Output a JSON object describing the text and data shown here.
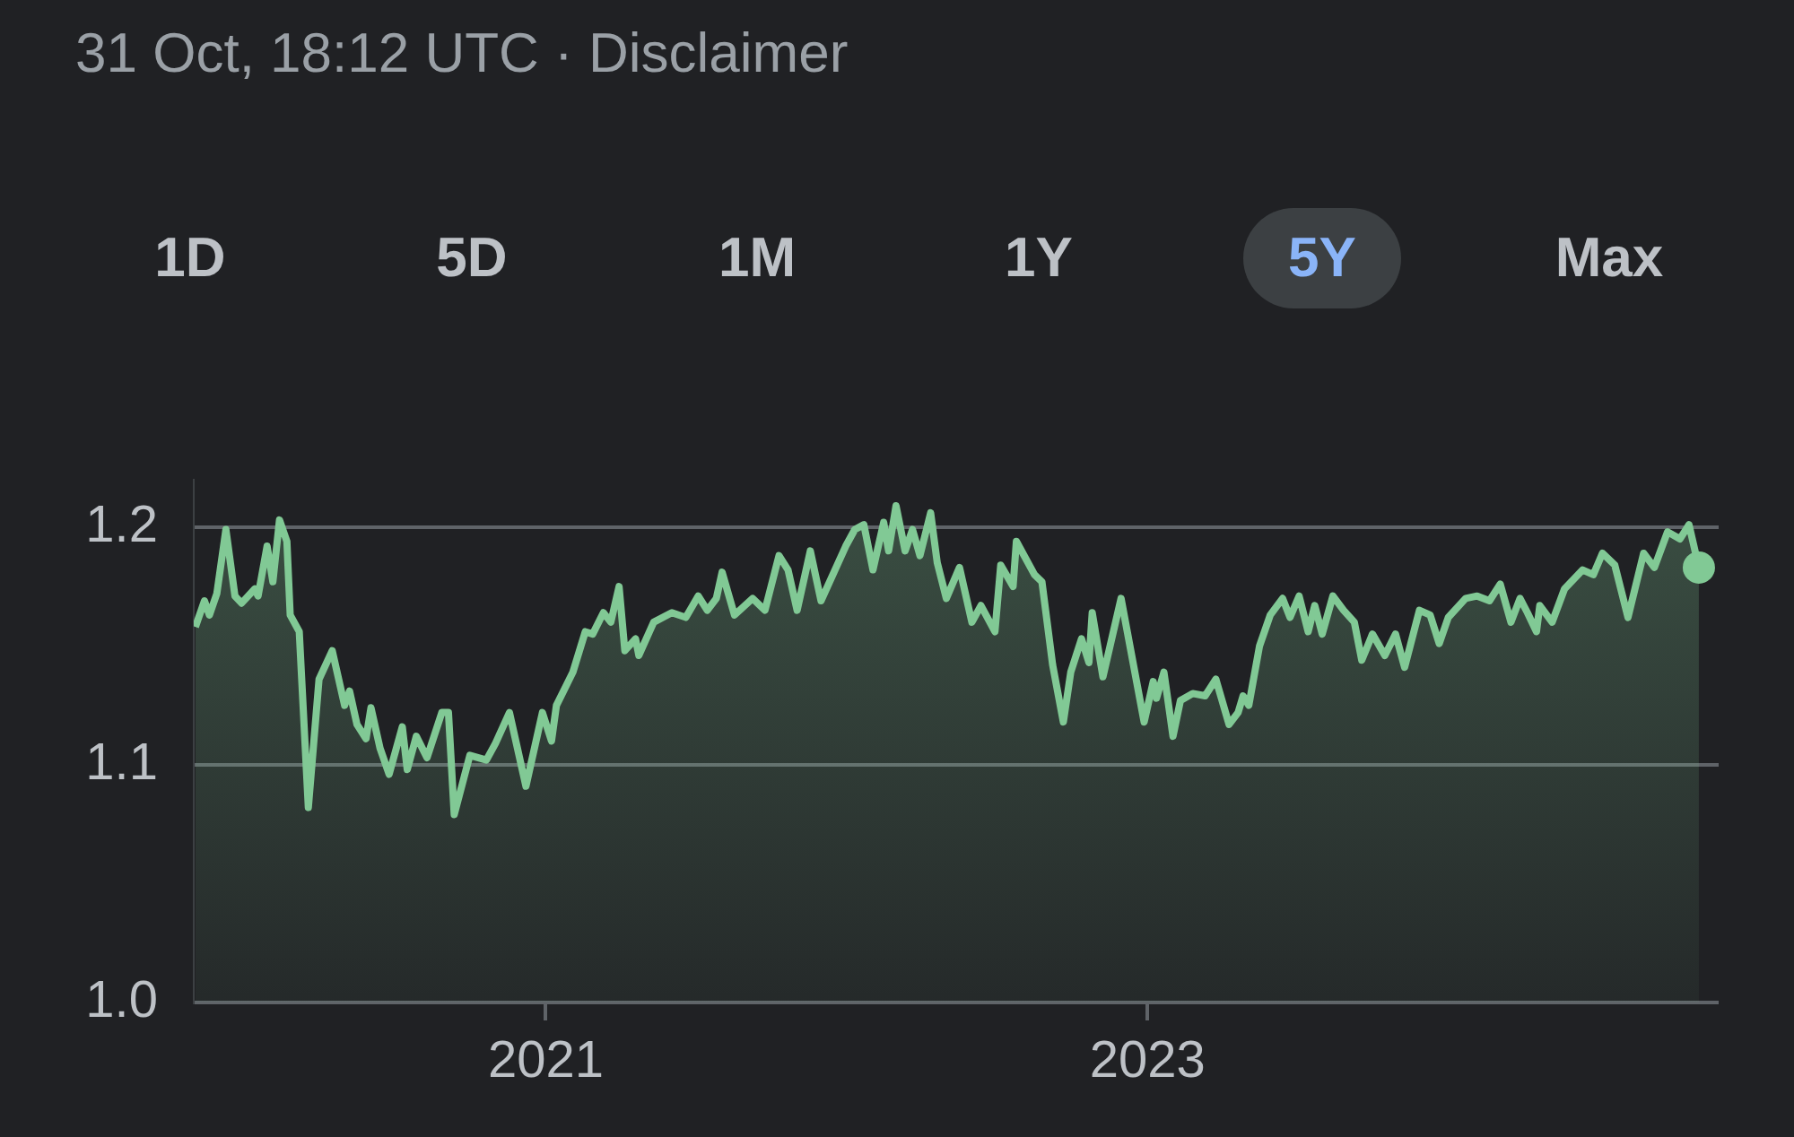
{
  "chart_data": {
    "type": "area",
    "subtitle": "31 Oct, 18:12 UTC · Disclaimer",
    "annotations": [
      "1D",
      "5D",
      "1M",
      "1Y",
      "5Y",
      "Max"
    ],
    "xlim": [
      "2019-11-01",
      "2024-11-24"
    ],
    "xticks": [
      "2021",
      "2023"
    ],
    "ylim": [
      1.0,
      1.22
    ],
    "yticks": [
      {
        "value": 1.0,
        "label": "1.0"
      },
      1.1,
      1.2
    ],
    "grid": "y",
    "series": [
      {
        "color": "#81c995",
        "x": [
          "2019-11-03",
          "2019-11-14",
          "2019-11-20",
          "2019-11-29",
          "2019-12-10",
          "2019-12-21",
          "2019-12-29",
          "2020-01-14",
          "2020-01-18",
          "2020-01-29",
          "2020-02-05",
          "2020-02-13",
          "2020-02-22",
          "2020-02-26",
          "2020-03-08",
          "2020-03-19",
          "2020-04-01",
          "2020-04-17",
          "2020-05-02",
          "2020-05-08",
          "2020-05-17",
          "2020-05-28",
          "2020-06-03",
          "2020-06-14",
          "2020-06-25",
          "2020-07-11",
          "2020-07-17",
          "2020-07-28",
          "2020-08-10",
          "2020-08-28",
          "2020-09-05",
          "2020-09-12",
          "2020-10-01",
          "2020-10-21",
          "2020-11-01",
          "2020-11-18",
          "2020-12-08",
          "2020-12-28",
          "2021-01-08",
          "2021-01-14",
          "2021-02-03",
          "2021-02-18",
          "2021-02-27",
          "2021-03-12",
          "2021-03-21",
          "2021-03-31",
          "2021-04-07",
          "2021-04-20",
          "2021-04-24",
          "2021-05-12",
          "2021-06-03",
          "2021-06-20",
          "2021-07-05",
          "2021-07-16",
          "2021-07-27",
          "2021-08-03",
          "2021-08-18",
          "2021-09-09",
          "2021-09-24",
          "2021-10-11",
          "2021-10-22",
          "2021-11-02",
          "2021-11-18",
          "2021-12-01",
          "2021-12-31",
          "2022-01-11",
          "2022-01-22",
          "2022-02-02",
          "2022-02-15",
          "2022-02-21",
          "2022-03-02",
          "2022-03-13",
          "2022-03-22",
          "2022-03-31",
          "2022-04-13",
          "2022-04-21",
          "2022-05-02",
          "2022-05-18",
          "2022-06-02",
          "2022-06-13",
          "2022-06-30",
          "2022-07-07",
          "2022-07-22",
          "2022-07-26",
          "2022-08-17",
          "2022-08-26",
          "2022-09-08",
          "2022-09-21",
          "2022-09-30",
          "2022-10-13",
          "2022-10-22",
          "2022-10-26",
          "2022-11-08",
          "2022-11-30",
          "2022-12-28",
          "2023-01-08",
          "2023-01-12",
          "2023-01-21",
          "2023-02-01",
          "2023-02-10",
          "2023-02-25",
          "2023-03-12",
          "2023-03-25",
          "2023-04-10",
          "2023-04-21",
          "2023-04-27",
          "2023-05-04",
          "2023-05-17",
          "2023-05-30",
          "2023-06-14",
          "2023-06-23",
          "2023-07-04",
          "2023-07-15",
          "2023-07-23",
          "2023-08-01",
          "2023-08-14",
          "2023-08-27",
          "2023-09-09",
          "2023-09-18",
          "2023-10-01",
          "2023-10-16",
          "2023-10-29",
          "2023-11-09",
          "2023-11-27",
          "2023-12-10",
          "2023-12-21",
          "2024-01-01",
          "2024-01-22",
          "2024-02-05",
          "2024-02-20",
          "2024-03-04",
          "2024-03-17",
          "2024-03-28",
          "2024-04-06",
          "2024-04-17",
          "2024-04-21",
          "2024-05-06",
          "2024-05-21",
          "2024-06-12",
          "2024-06-25",
          "2024-07-06",
          "2024-07-21",
          "2024-08-06",
          "2024-08-25",
          "2024-09-07",
          "2024-09-23",
          "2024-10-08",
          "2024-10-19",
          "2024-10-31"
        ],
        "values": [
          1.158,
          1.169,
          1.163,
          1.172,
          1.199,
          1.171,
          1.168,
          1.174,
          1.171,
          1.192,
          1.177,
          1.203,
          1.194,
          1.163,
          1.156,
          1.082,
          1.136,
          1.148,
          1.125,
          1.131,
          1.117,
          1.111,
          1.124,
          1.107,
          1.096,
          1.116,
          1.098,
          1.112,
          1.103,
          1.122,
          1.122,
          1.079,
          1.104,
          1.102,
          1.109,
          1.122,
          1.091,
          1.122,
          1.11,
          1.125,
          1.139,
          1.156,
          1.155,
          1.164,
          1.16,
          1.175,
          1.148,
          1.153,
          1.146,
          1.16,
          1.164,
          1.162,
          1.171,
          1.165,
          1.17,
          1.181,
          1.163,
          1.17,
          1.165,
          1.188,
          1.182,
          1.165,
          1.19,
          1.169,
          1.192,
          1.199,
          1.201,
          1.182,
          1.202,
          1.19,
          1.209,
          1.19,
          1.199,
          1.188,
          1.206,
          1.185,
          1.17,
          1.183,
          1.16,
          1.167,
          1.156,
          1.184,
          1.175,
          1.194,
          1.18,
          1.177,
          1.142,
          1.118,
          1.139,
          1.153,
          1.143,
          1.164,
          1.137,
          1.17,
          1.118,
          1.135,
          1.128,
          1.139,
          1.112,
          1.127,
          1.13,
          1.129,
          1.136,
          1.117,
          1.122,
          1.129,
          1.125,
          1.15,
          1.163,
          1.17,
          1.162,
          1.171,
          1.156,
          1.167,
          1.155,
          1.171,
          1.165,
          1.16,
          1.144,
          1.155,
          1.146,
          1.155,
          1.141,
          1.165,
          1.163,
          1.151,
          1.162,
          1.17,
          1.171,
          1.169,
          1.176,
          1.16,
          1.17,
          1.164,
          1.156,
          1.167,
          1.16,
          1.174,
          1.182,
          1.18,
          1.189,
          1.184,
          1.162,
          1.189,
          1.183,
          1.198,
          1.195,
          1.201,
          1.183
        ]
      }
    ]
  }
}
